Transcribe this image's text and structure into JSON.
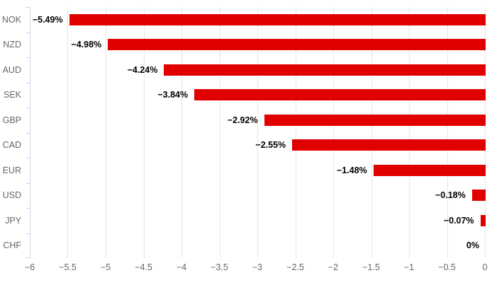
{
  "chart_data": {
    "type": "bar",
    "orientation": "horizontal",
    "title": "",
    "xlabel": "",
    "ylabel": "",
    "categories": [
      "NOK",
      "NZD",
      "AUD",
      "SEK",
      "GBP",
      "CAD",
      "EUR",
      "USD",
      "JPY",
      "CHF"
    ],
    "values": [
      -5.49,
      -4.98,
      -4.24,
      -3.84,
      -2.92,
      -2.55,
      -1.48,
      -0.18,
      -0.07,
      0
    ],
    "data_labels": [
      "−5.49%",
      "−4.98%",
      "−4.24%",
      "−3.84%",
      "−2.92%",
      "−2.55%",
      "−1.48%",
      "−0.18%",
      "−0.07%",
      "0%"
    ],
    "xlim": [
      -6,
      0
    ],
    "x_ticks": [
      -6,
      -5.5,
      -5,
      -4.5,
      -4,
      -3.5,
      -3,
      -2.5,
      -2,
      -1.5,
      -1,
      -0.5,
      0
    ],
    "x_tick_labels": [
      "−6",
      "−5.5",
      "−5",
      "−4.5",
      "−4",
      "−3.5",
      "−3",
      "−2.5",
      "−2",
      "−1.5",
      "−1",
      "−0.5",
      "0"
    ],
    "grid": true,
    "legend": false,
    "colors": {
      "bar": "#e00000",
      "grid_line": "#e6e6e6",
      "axis_line": "#ccd6eb",
      "category_label": "#666666",
      "tick_label": "#666666",
      "data_label": "#000000",
      "background": "#ffffff"
    }
  }
}
